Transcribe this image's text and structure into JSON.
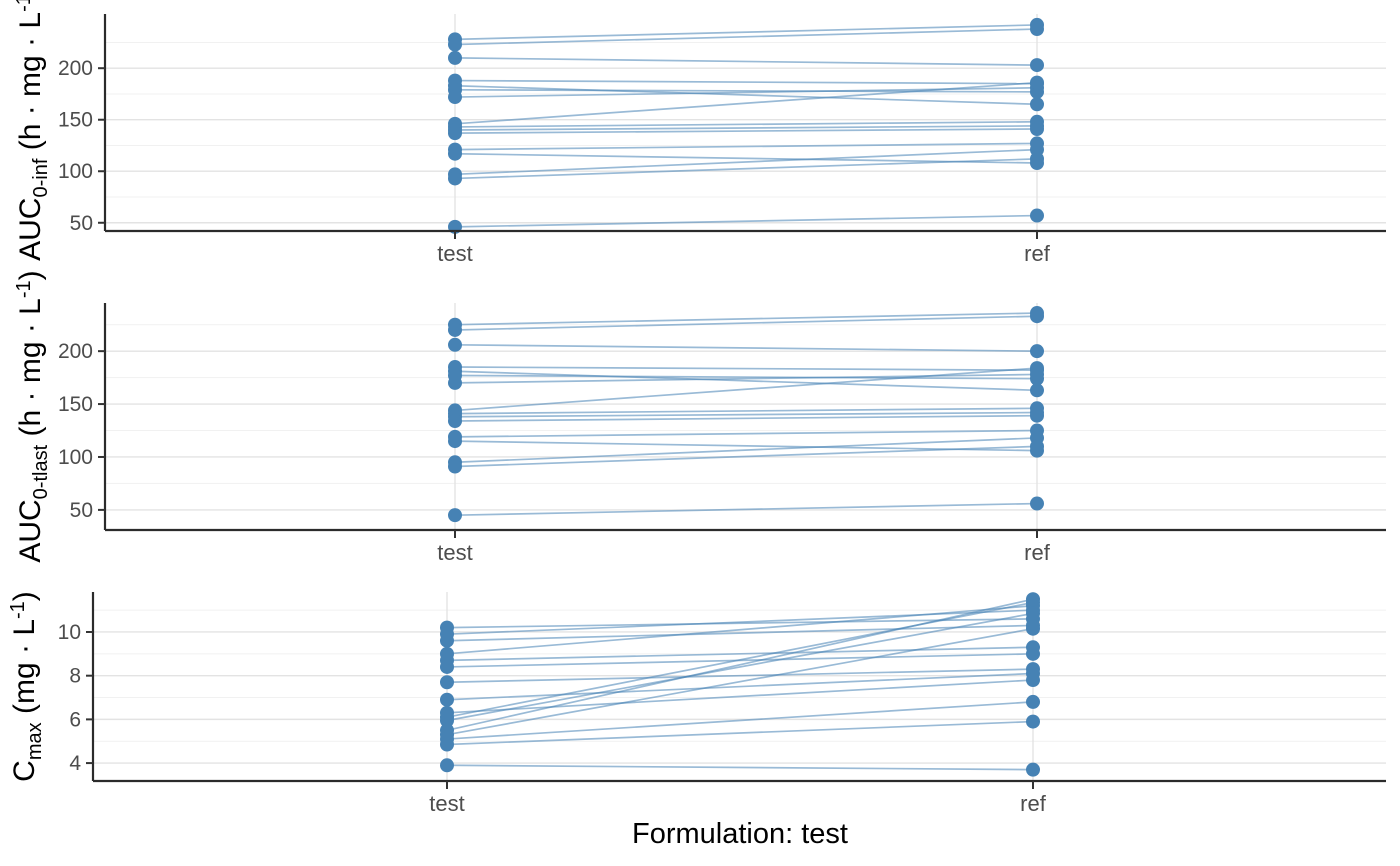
{
  "figure": {
    "caption": "Formulation: test",
    "background": "#FFFFFF"
  },
  "style": {
    "point_color": "#4682B4",
    "line_color": "#4682B4",
    "line_opacity": 0.55,
    "grid_major_color": "#E3E3E3",
    "grid_minor_color": "#F1F1F1",
    "axis_line_color": "#2B2B2B",
    "tick_mark_color": "#333333",
    "tick_label_color": "#4D4D4D",
    "axis_title_color": "#000000"
  },
  "chart_data": [
    {
      "type": "line",
      "id": "auc-inf",
      "ylabel": {
        "main": "AUC",
        "sub": "0-inf",
        "units_open": " (h · mg · L",
        "sup": "-1",
        "units_close": ")"
      },
      "categories": [
        "test",
        "ref"
      ],
      "ylim": [
        42,
        252.6
      ],
      "y_ticks_major": [
        50,
        100,
        150,
        200
      ],
      "y_ticks_minor": [
        75,
        125,
        175,
        225
      ],
      "grid": true,
      "legend": "none",
      "series": [
        {
          "name": "s1",
          "values": [
            228,
            242
          ]
        },
        {
          "name": "s2",
          "values": [
            223,
            238
          ]
        },
        {
          "name": "s3",
          "values": [
            210,
            203
          ]
        },
        {
          "name": "s4",
          "values": [
            188,
            185
          ]
        },
        {
          "name": "s5",
          "values": [
            183,
            165
          ]
        },
        {
          "name": "s6",
          "values": [
            179,
            177
          ]
        },
        {
          "name": "s7",
          "values": [
            172,
            181
          ]
        },
        {
          "name": "s8",
          "values": [
            146,
            186
          ]
        },
        {
          "name": "s9",
          "values": [
            143,
            148
          ]
        },
        {
          "name": "s10",
          "values": [
            140,
            144
          ]
        },
        {
          "name": "s11",
          "values": [
            137,
            141
          ]
        },
        {
          "name": "s12",
          "values": [
            121,
            127
          ]
        },
        {
          "name": "s13",
          "values": [
            117,
            108
          ]
        },
        {
          "name": "s14",
          "values": [
            97,
            121
          ]
        },
        {
          "name": "s15",
          "values": [
            93,
            112
          ]
        },
        {
          "name": "s16",
          "values": [
            46,
            57
          ]
        }
      ]
    },
    {
      "type": "line",
      "id": "auc-tlast",
      "ylabel": {
        "main": "AUC",
        "sub": "0-tlast",
        "units_open": " (h · mg · L",
        "sup": "-1",
        "units_close": ")"
      },
      "categories": [
        "test",
        "ref"
      ],
      "ylim": [
        31,
        245.5
      ],
      "y_ticks_major": [
        50,
        100,
        150,
        200
      ],
      "y_ticks_minor": [
        75,
        125,
        175,
        225
      ],
      "grid": true,
      "legend": "none",
      "series": [
        {
          "name": "s1",
          "values": [
            225,
            236
          ]
        },
        {
          "name": "s2",
          "values": [
            220,
            233
          ]
        },
        {
          "name": "s3",
          "values": [
            206,
            200
          ]
        },
        {
          "name": "s4",
          "values": [
            185,
            182
          ]
        },
        {
          "name": "s5",
          "values": [
            181,
            163
          ]
        },
        {
          "name": "s6",
          "values": [
            177,
            174
          ]
        },
        {
          "name": "s7",
          "values": [
            170,
            178
          ]
        },
        {
          "name": "s8",
          "values": [
            144,
            184
          ]
        },
        {
          "name": "s9",
          "values": [
            141,
            146
          ]
        },
        {
          "name": "s10",
          "values": [
            138,
            142
          ]
        },
        {
          "name": "s11",
          "values": [
            134,
            139
          ]
        },
        {
          "name": "s12",
          "values": [
            119,
            125
          ]
        },
        {
          "name": "s13",
          "values": [
            115,
            106
          ]
        },
        {
          "name": "s14",
          "values": [
            95,
            118
          ]
        },
        {
          "name": "s15",
          "values": [
            91,
            110
          ]
        },
        {
          "name": "s16",
          "values": [
            45,
            56
          ]
        }
      ]
    },
    {
      "type": "line",
      "id": "cmax",
      "ylabel": {
        "main": "C",
        "sub": "max",
        "units_open": " (mg · L",
        "sup": "-1",
        "units_close": ")"
      },
      "categories": [
        "test",
        "ref"
      ],
      "ylim": [
        3.18,
        11.83
      ],
      "y_ticks_major": [
        4,
        6,
        8,
        10
      ],
      "y_ticks_minor": [
        5,
        7,
        9,
        11
      ],
      "grid": true,
      "legend": "none",
      "series": [
        {
          "name": "s1",
          "values": [
            10.2,
            10.6
          ]
        },
        {
          "name": "s2",
          "values": [
            9.9,
            11.0
          ]
        },
        {
          "name": "s3",
          "values": [
            9.6,
            10.3
          ]
        },
        {
          "name": "s4",
          "values": [
            9.0,
            11.2
          ]
        },
        {
          "name": "s5",
          "values": [
            8.7,
            9.3
          ]
        },
        {
          "name": "s6",
          "values": [
            8.4,
            9.0
          ]
        },
        {
          "name": "s7",
          "values": [
            7.7,
            8.3
          ]
        },
        {
          "name": "s8",
          "values": [
            6.9,
            8.1
          ]
        },
        {
          "name": "s9",
          "values": [
            6.3,
            7.8
          ]
        },
        {
          "name": "s10",
          "values": [
            6.1,
            11.35
          ]
        },
        {
          "name": "s11",
          "values": [
            5.95,
            10.85
          ]
        },
        {
          "name": "s12",
          "values": [
            5.5,
            11.5
          ]
        },
        {
          "name": "s13",
          "values": [
            5.3,
            10.15
          ]
        },
        {
          "name": "s14",
          "values": [
            5.1,
            6.8
          ]
        },
        {
          "name": "s15",
          "values": [
            4.85,
            5.9
          ]
        },
        {
          "name": "s16",
          "values": [
            3.9,
            3.7
          ]
        }
      ]
    }
  ]
}
